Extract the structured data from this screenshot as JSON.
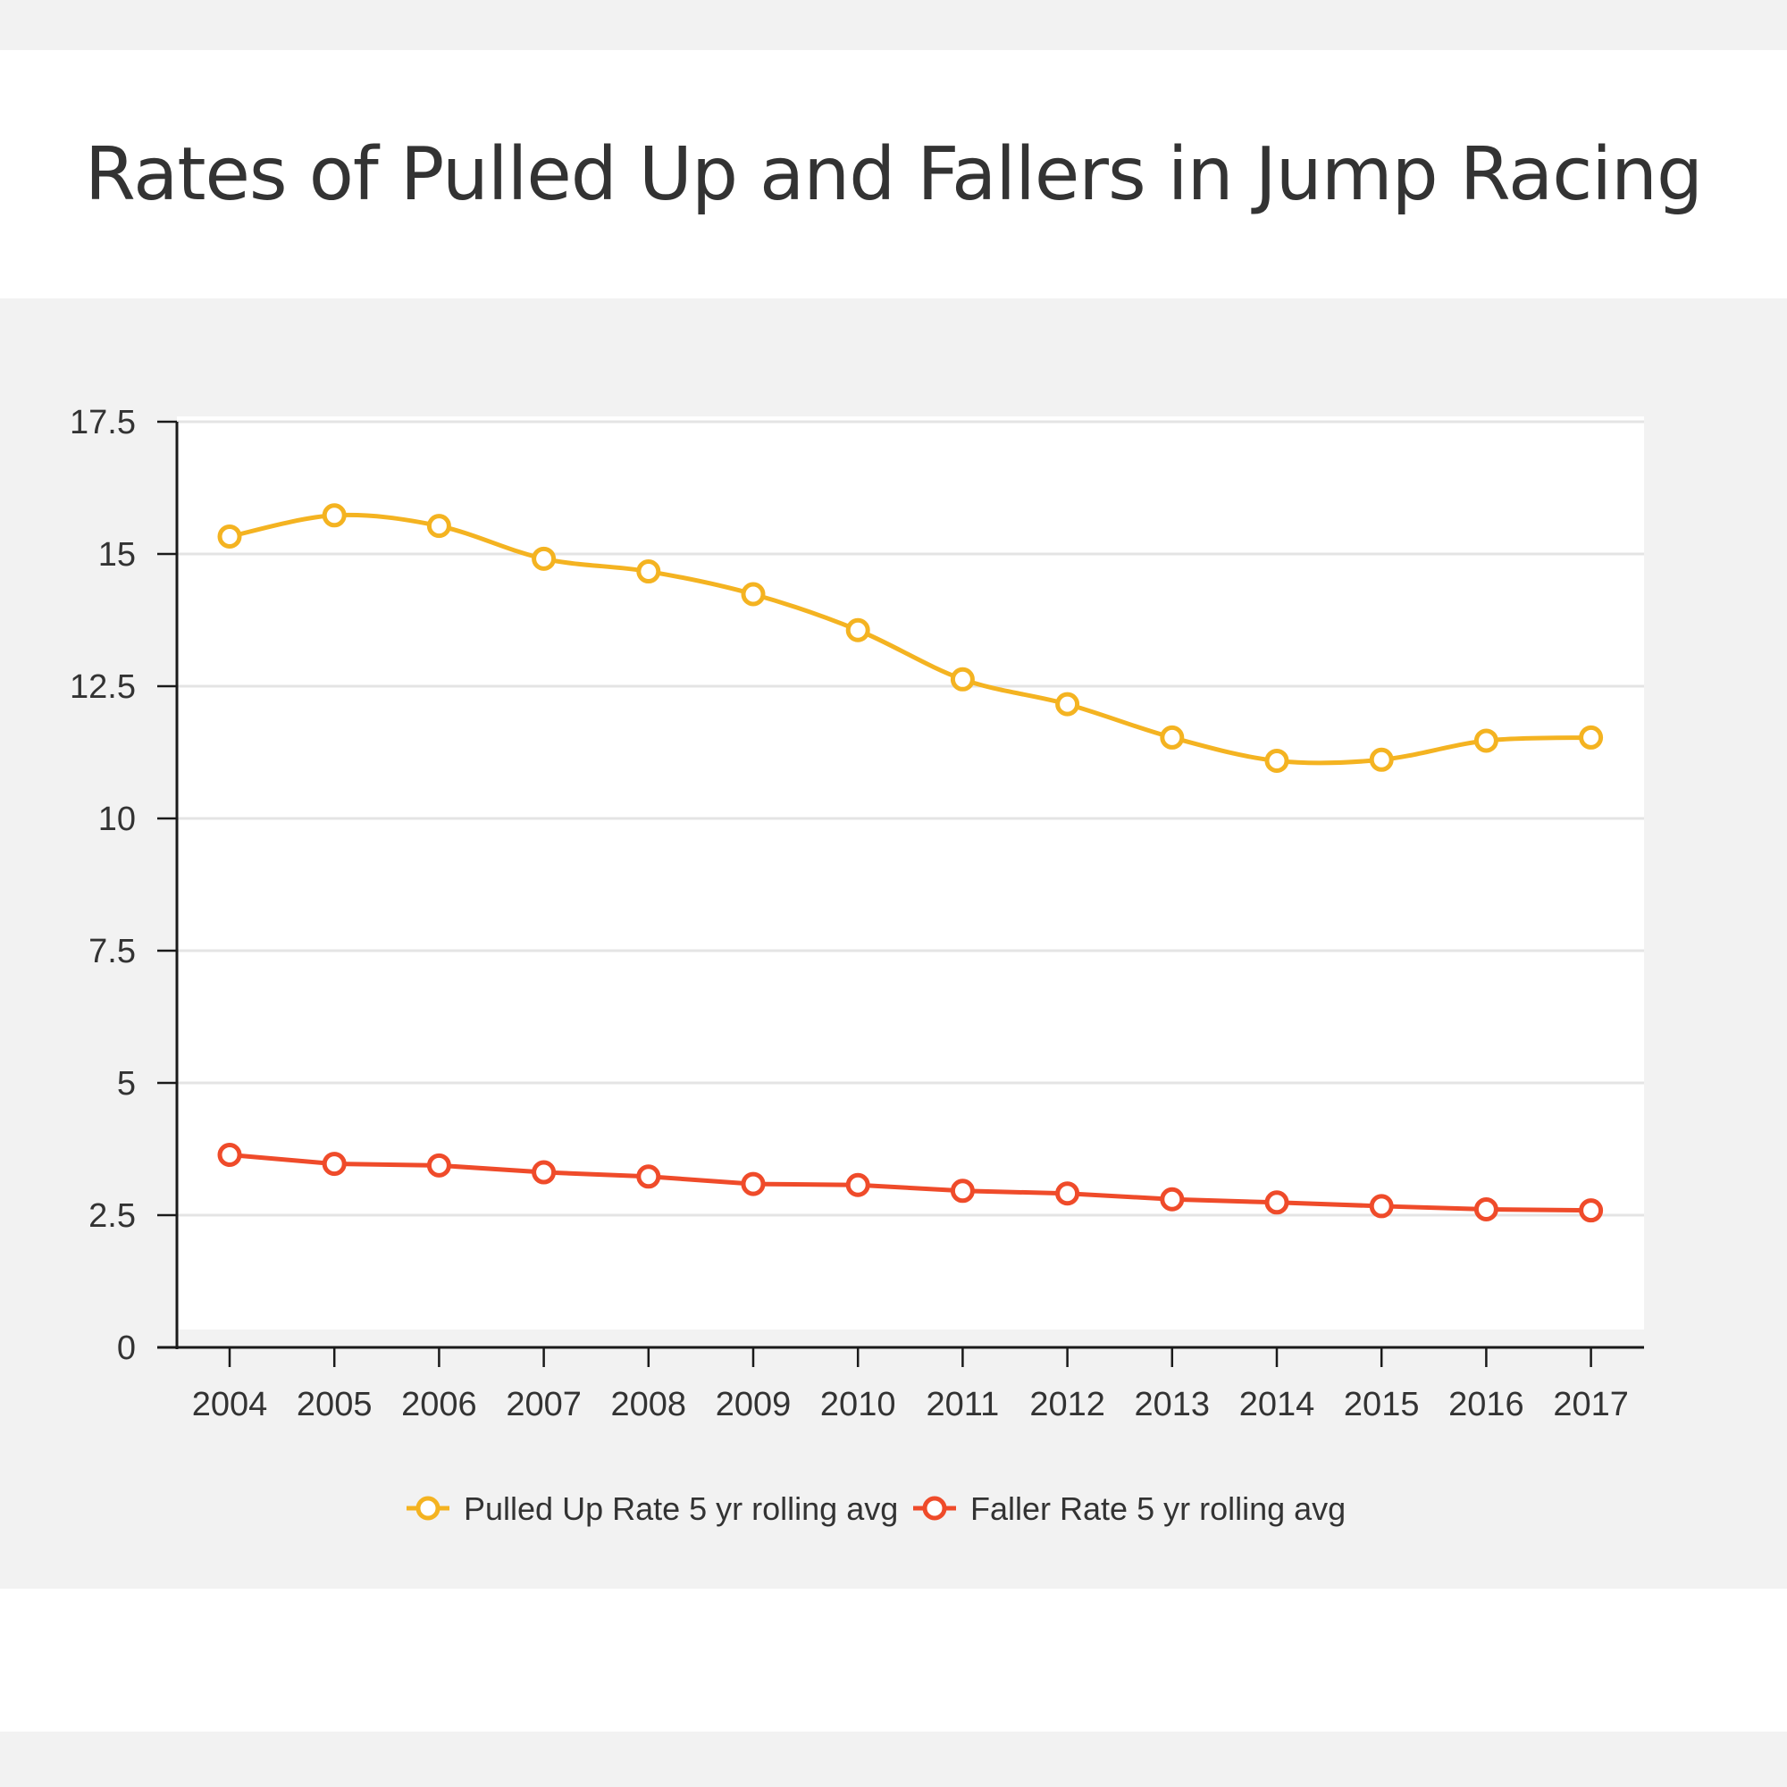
{
  "chart_data": {
    "type": "line",
    "title": "Rates of Pulled Up and Fallers in Jump Racing",
    "xlabel": "",
    "ylabel": "",
    "x": [
      "2004",
      "2005",
      "2006",
      "2007",
      "2008",
      "2009",
      "2010",
      "2011",
      "2012",
      "2013",
      "2014",
      "2015",
      "2016",
      "2017"
    ],
    "ylim": [
      0,
      17.5
    ],
    "yticks": [
      0,
      2.5,
      5,
      7.5,
      10,
      12.5,
      15,
      17.5
    ],
    "ytick_labels": [
      "0",
      "2.5",
      "5",
      "7.5",
      "10",
      "12.5",
      "15",
      "17.5"
    ],
    "grid": true,
    "legend_position": "bottom",
    "series": [
      {
        "name": "Pulled Up Rate 5 yr rolling avg",
        "color": "#f4b321",
        "smooth": true,
        "values": [
          15.33,
          15.73,
          15.53,
          14.91,
          14.67,
          14.24,
          13.56,
          12.63,
          12.16,
          11.53,
          11.09,
          11.11,
          11.47,
          11.53
        ]
      },
      {
        "name": "Faller Rate 5 yr rolling avg",
        "color": "#ef4b2a",
        "smooth": false,
        "values": [
          3.64,
          3.47,
          3.44,
          3.31,
          3.23,
          3.09,
          3.07,
          2.96,
          2.91,
          2.8,
          2.74,
          2.67,
          2.61,
          2.59
        ]
      }
    ]
  }
}
